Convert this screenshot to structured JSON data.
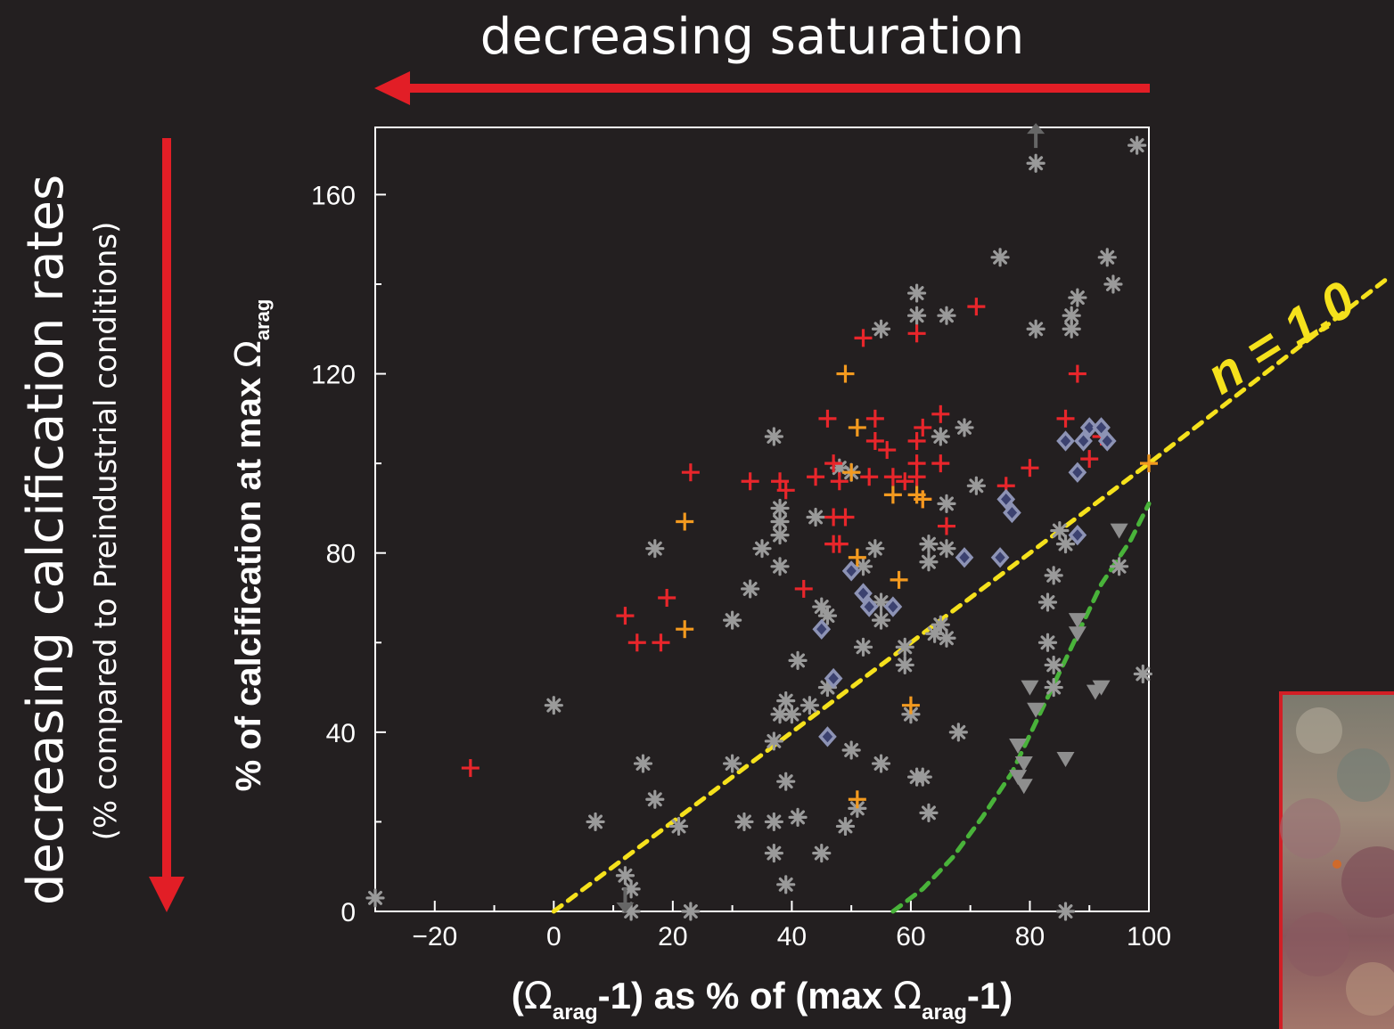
{
  "header": {
    "top_label": "decreasing saturation"
  },
  "left_label": {
    "line1": "decreasing calcification rates",
    "line2": "(% compared to Preindustrial conditions)"
  },
  "fit_label": {
    "n": "n",
    "rest": " = 1.0"
  },
  "axis_labels": {
    "x_open": "(",
    "x_omega": "Ω",
    "x_sub": "arag",
    "x_mid": "-1) as % of (max ",
    "x_omega2": "Ω",
    "x_sub2": "arag",
    "x_close": "-1)",
    "y_main": "% of calcification at max ",
    "y_omega": "Ω",
    "y_sub": "arag"
  },
  "colors": {
    "background": "#231f20",
    "arrow": "#e21e26",
    "gray": "#9a9a9a",
    "red": "#e8262b",
    "orange": "#f39a1f",
    "diamond_fill": "#3c4270",
    "diamond_stroke": "#8d93b5",
    "triangle": "#8e8e8e",
    "yellow_line": "#f5e11c",
    "green_line": "#49b33a",
    "photo_border": "#d21f26"
  },
  "chart_data": {
    "type": "scatter",
    "xlim": [
      -30,
      100
    ],
    "ylim": [
      0,
      175
    ],
    "xticks": [
      -20,
      0,
      20,
      40,
      60,
      80,
      100
    ],
    "yticks": [
      0,
      40,
      80,
      120,
      160
    ],
    "grid": false,
    "series": [
      {
        "marker": "asterisk",
        "color": "#9a9a9a",
        "points": [
          [
            -30,
            3
          ],
          [
            0,
            46
          ],
          [
            7,
            20
          ],
          [
            12,
            8
          ],
          [
            13,
            5
          ],
          [
            13,
            0
          ],
          [
            15,
            33
          ],
          [
            17,
            81
          ],
          [
            17,
            25
          ],
          [
            21,
            19
          ],
          [
            23,
            0
          ],
          [
            30,
            65
          ],
          [
            30,
            33
          ],
          [
            32,
            20
          ],
          [
            33,
            72
          ],
          [
            35,
            81
          ],
          [
            37,
            38
          ],
          [
            37,
            20
          ],
          [
            37,
            13
          ],
          [
            37,
            106
          ],
          [
            38,
            90
          ],
          [
            38,
            87
          ],
          [
            38,
            84
          ],
          [
            38,
            77
          ],
          [
            38,
            44
          ],
          [
            39,
            6
          ],
          [
            39,
            29
          ],
          [
            39,
            47
          ],
          [
            40,
            44
          ],
          [
            41,
            56
          ],
          [
            41,
            21
          ],
          [
            43,
            46
          ],
          [
            44,
            88
          ],
          [
            45,
            13
          ],
          [
            45,
            68
          ],
          [
            46,
            66
          ],
          [
            46,
            50
          ],
          [
            48,
            99
          ],
          [
            49,
            19
          ],
          [
            50,
            98
          ],
          [
            50,
            36
          ],
          [
            51,
            23
          ],
          [
            52,
            59
          ],
          [
            52,
            77
          ],
          [
            54,
            81
          ],
          [
            55,
            69
          ],
          [
            55,
            33
          ],
          [
            55,
            65
          ],
          [
            55,
            130
          ],
          [
            59,
            59
          ],
          [
            59,
            55
          ],
          [
            60,
            44
          ],
          [
            61,
            30
          ],
          [
            61,
            133
          ],
          [
            61,
            138
          ],
          [
            62,
            30
          ],
          [
            63,
            22
          ],
          [
            63,
            82
          ],
          [
            63,
            78
          ],
          [
            64,
            62
          ],
          [
            65,
            64
          ],
          [
            65,
            106
          ],
          [
            66,
            91
          ],
          [
            66,
            81
          ],
          [
            66,
            61
          ],
          [
            66,
            133
          ],
          [
            68,
            40
          ],
          [
            69,
            108
          ],
          [
            71,
            95
          ],
          [
            75,
            146
          ],
          [
            81,
            167
          ],
          [
            81,
            130
          ],
          [
            83,
            60
          ],
          [
            83,
            69
          ],
          [
            84,
            50
          ],
          [
            84,
            75
          ],
          [
            84,
            55
          ],
          [
            85,
            85
          ],
          [
            86,
            82
          ],
          [
            86,
            0
          ],
          [
            87,
            130
          ],
          [
            87,
            133
          ],
          [
            88,
            137
          ],
          [
            93,
            146
          ],
          [
            94,
            140
          ],
          [
            95,
            77
          ],
          [
            98,
            171
          ],
          [
            99,
            53
          ]
        ]
      },
      {
        "marker": "plus",
        "color": "#e8262b",
        "points": [
          [
            -14,
            32
          ],
          [
            12,
            66
          ],
          [
            14,
            60
          ],
          [
            18,
            60
          ],
          [
            19,
            70
          ],
          [
            23,
            98
          ],
          [
            33,
            96
          ],
          [
            38,
            96
          ],
          [
            39,
            94
          ],
          [
            42,
            72
          ],
          [
            44,
            97
          ],
          [
            46,
            110
          ],
          [
            47,
            100
          ],
          [
            47,
            88
          ],
          [
            47,
            82
          ],
          [
            48,
            82
          ],
          [
            48,
            96
          ],
          [
            49,
            88
          ],
          [
            52,
            128
          ],
          [
            53,
            97
          ],
          [
            54,
            105
          ],
          [
            54,
            110
          ],
          [
            56,
            103
          ],
          [
            57,
            97
          ],
          [
            59,
            96
          ],
          [
            61,
            105
          ],
          [
            61,
            100
          ],
          [
            61,
            97
          ],
          [
            61,
            129
          ],
          [
            62,
            108
          ],
          [
            62,
            92
          ],
          [
            65,
            100
          ],
          [
            65,
            111
          ],
          [
            66,
            86
          ],
          [
            71,
            135
          ],
          [
            76,
            95
          ],
          [
            80,
            99
          ],
          [
            86,
            110
          ],
          [
            88,
            120
          ],
          [
            90,
            101
          ],
          [
            92,
            106
          ]
        ]
      },
      {
        "marker": "plus",
        "color": "#f39a1f",
        "points": [
          [
            22,
            87
          ],
          [
            22,
            63
          ],
          [
            49,
            120
          ],
          [
            50,
            98
          ],
          [
            51,
            108
          ],
          [
            51,
            79
          ],
          [
            51,
            25
          ],
          [
            57,
            93
          ],
          [
            58,
            74
          ],
          [
            60,
            46
          ],
          [
            61,
            93
          ],
          [
            62,
            92
          ],
          [
            100,
            100
          ]
        ]
      },
      {
        "marker": "diamond",
        "color": "#3c4270",
        "points": [
          [
            45,
            63
          ],
          [
            47,
            52
          ],
          [
            46,
            39
          ],
          [
            50,
            76
          ],
          [
            52,
            71
          ],
          [
            53,
            68
          ],
          [
            57,
            68
          ],
          [
            69,
            79
          ],
          [
            75,
            79
          ],
          [
            76,
            92
          ],
          [
            77,
            89
          ],
          [
            86,
            105
          ],
          [
            88,
            98
          ],
          [
            88,
            84
          ],
          [
            89,
            105
          ],
          [
            90,
            108
          ],
          [
            92,
            108
          ],
          [
            93,
            105
          ]
        ]
      },
      {
        "marker": "triangle",
        "color": "#8e8e8e",
        "points": [
          [
            78,
            37
          ],
          [
            78,
            30
          ],
          [
            79,
            28
          ],
          [
            79,
            33
          ],
          [
            80,
            50
          ],
          [
            81,
            45
          ],
          [
            86,
            34
          ],
          [
            88,
            65
          ],
          [
            88,
            62
          ],
          [
            91,
            49
          ],
          [
            92,
            50
          ],
          [
            95,
            85
          ]
        ]
      }
    ],
    "fits": [
      {
        "label": "n = 1.0",
        "style": "dashed",
        "color": "#f5e11c",
        "points": [
          [
            0,
            0
          ],
          [
            100,
            100
          ]
        ]
      },
      {
        "style": "dashed",
        "color": "#49b33a",
        "points": [
          [
            57,
            0
          ],
          [
            62,
            5
          ],
          [
            67,
            12
          ],
          [
            72,
            21
          ],
          [
            77,
            31
          ],
          [
            82,
            45
          ],
          [
            87,
            59
          ],
          [
            92,
            73
          ],
          [
            97,
            83
          ],
          [
            100,
            91
          ]
        ]
      }
    ],
    "arrows": [
      {
        "color": "#666666",
        "direction": "up",
        "point": [
          81,
          172
        ]
      },
      {
        "color": "#666666",
        "direction": "down",
        "point": [
          12,
          2
        ]
      }
    ]
  }
}
